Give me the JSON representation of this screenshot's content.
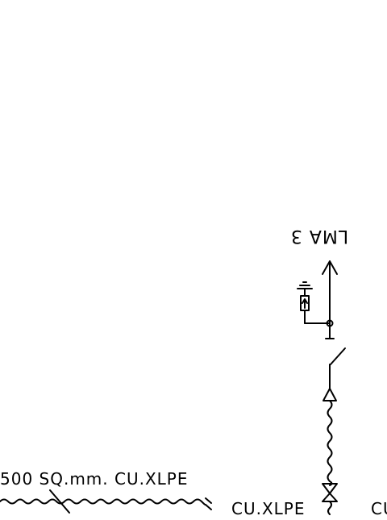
{
  "labels": {
    "feeder_name": "LMA 3",
    "cable_spec": "500 SQ.mm. CU.XLPE",
    "cable_material_right": "CU.XLPE",
    "cable_material_cut": "CU"
  },
  "colors": {
    "line": "#000000",
    "background": "#ffffff"
  }
}
